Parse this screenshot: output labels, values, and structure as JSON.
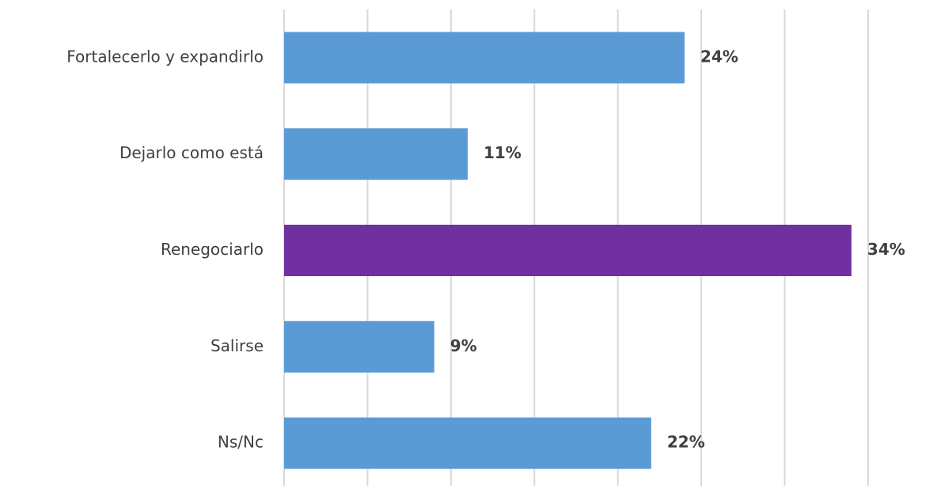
{
  "chart_data": {
    "type": "hbar",
    "categories": [
      "Fortalecerlo y expandirlo",
      "Dejarlo como está",
      "Renegociarlo",
      "Salirse",
      "Ns/Nc"
    ],
    "values": [
      24,
      11,
      34,
      9,
      22
    ],
    "value_labels": [
      "24%",
      "11%",
      "34%",
      "9%",
      "22%"
    ],
    "colors": [
      "#5b9bd5",
      "#5b9bd5",
      "#7030a0",
      "#5b9bd5",
      "#5b9bd5"
    ],
    "xlim": [
      0,
      35
    ],
    "xticks": [
      0,
      5,
      10,
      15,
      20,
      25,
      30,
      35
    ],
    "grid": true
  }
}
